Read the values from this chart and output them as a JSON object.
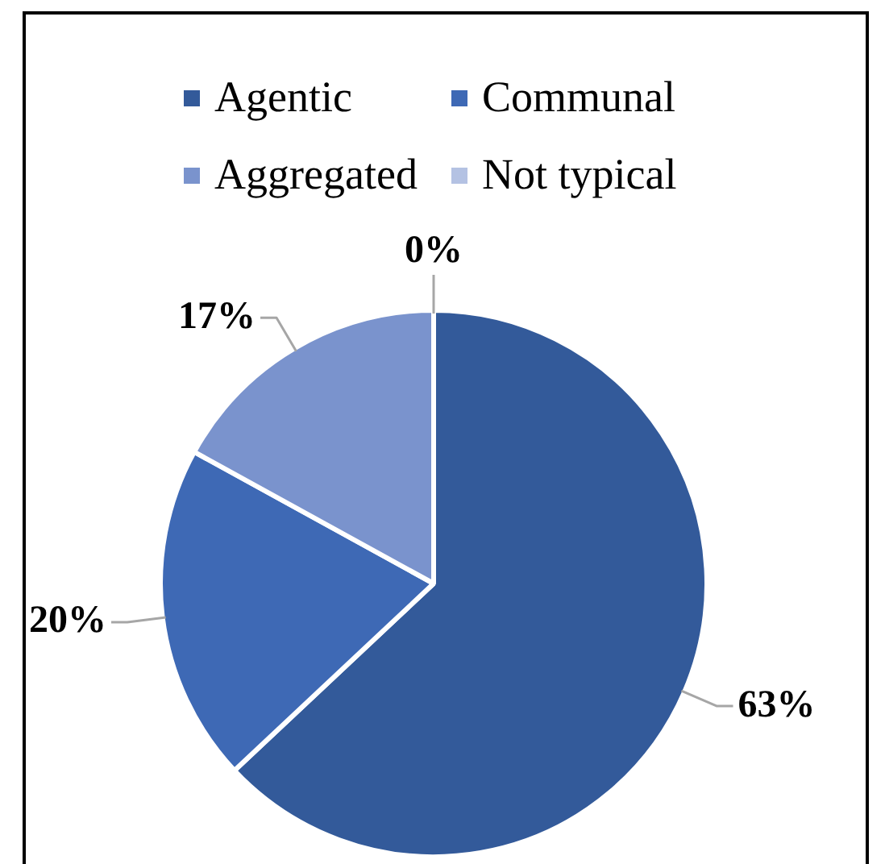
{
  "chart_data": {
    "type": "pie",
    "categories": [
      "Agentic",
      "Communal",
      "Aggregated",
      "Not typical"
    ],
    "values": [
      63,
      20,
      17,
      0
    ],
    "colors": [
      "#335a9a",
      "#3e69b5",
      "#7a93cd",
      "#b4c2e3"
    ],
    "value_labels": [
      "63%",
      "20%",
      "17%",
      "0%"
    ],
    "legend": "top"
  }
}
